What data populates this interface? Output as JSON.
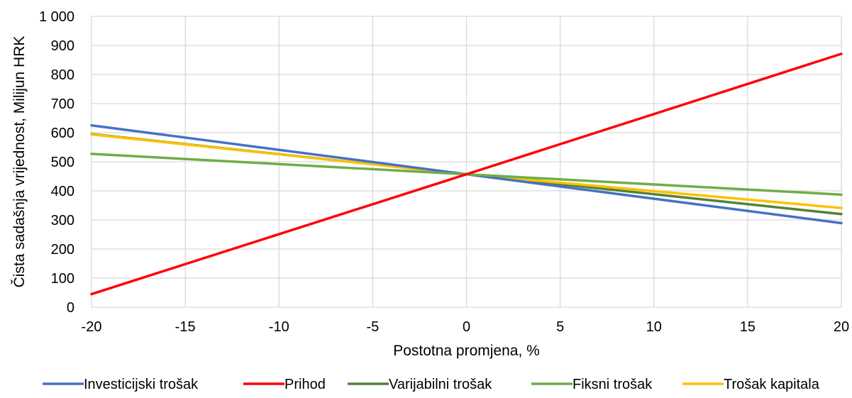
{
  "chart_data": {
    "type": "line",
    "title": "",
    "xlabel": "Postotna promjena, %",
    "ylabel": "Čista sadašnja vrijednost, Milijun HRK",
    "xlim": [
      -20,
      20
    ],
    "ylim": [
      0,
      1000
    ],
    "x_ticks": [
      -20,
      -15,
      -10,
      -5,
      0,
      5,
      10,
      15,
      20
    ],
    "y_ticks": [
      0,
      100,
      200,
      300,
      400,
      500,
      600,
      700,
      800,
      900,
      1000
    ],
    "x_tick_labels": [
      "-20",
      "-15",
      "-10",
      "-5",
      "0",
      "5",
      "10",
      "15",
      "20"
    ],
    "y_tick_labels": [
      "0",
      "100",
      "200",
      "300",
      "400",
      "500",
      "600",
      "700",
      "800",
      "900",
      "1 000"
    ],
    "grid": true,
    "legend_position": "bottom",
    "series": [
      {
        "name": "Investicijski trošak",
        "color": "#4472C4",
        "x": [
          -20,
          0,
          20
        ],
        "y": [
          625,
          457,
          289
        ]
      },
      {
        "name": "Prihod",
        "color": "#FF0000",
        "x": [
          -20,
          0,
          20
        ],
        "y": [
          45,
          457,
          871
        ]
      },
      {
        "name": "Varijabilni trošak",
        "color": "#548235",
        "x": [
          -20,
          0,
          20
        ],
        "y": [
          595,
          457,
          320
        ]
      },
      {
        "name": "Fiksni trošak",
        "color": "#70AD47",
        "x": [
          -20,
          0,
          20
        ],
        "y": [
          527,
          457,
          387
        ]
      },
      {
        "name": "Trošak kapitala",
        "color": "#FFC000",
        "x": [
          -20,
          0,
          20
        ],
        "y": [
          594,
          457,
          341
        ]
      }
    ]
  }
}
